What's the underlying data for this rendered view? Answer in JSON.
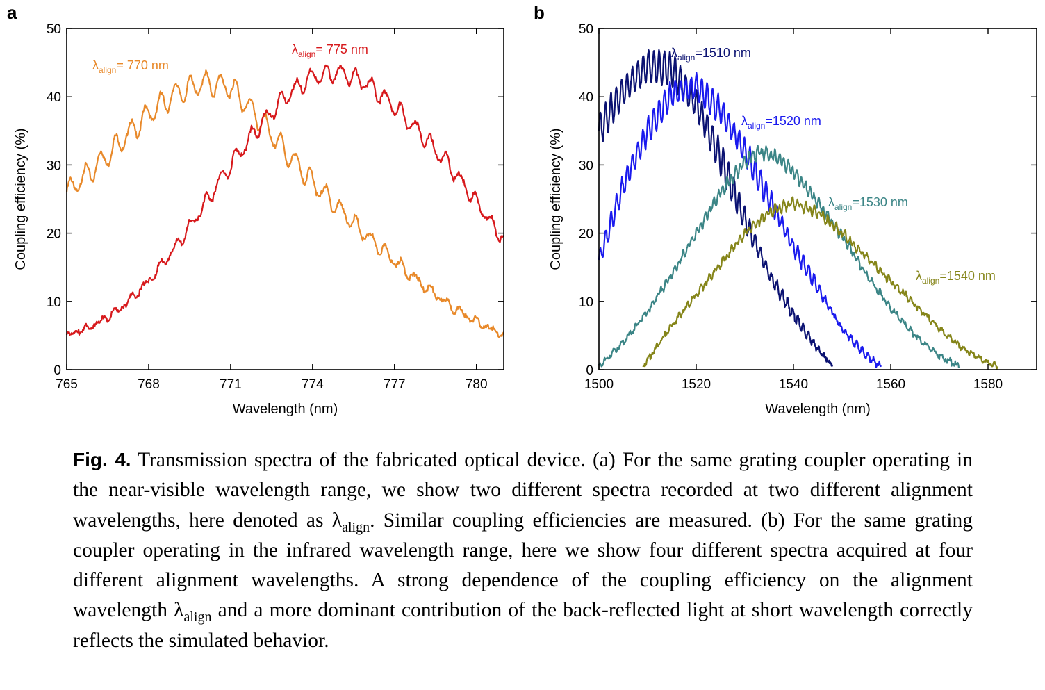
{
  "figure": {
    "caption_label": "Fig. 4.",
    "caption_segments": [
      "Transmission spectra of the fabricated optical device. (a) For the same grating coupler operating in the near-visible wavelength range, we show two different spectra recorded at two different alignment wavelengths, here denoted as ",
      ". Similar coupling efficiencies are measured. (b) For the same grating coupler operating in the infrared wavelength range, here we show four different spectra acquired at four different alignment wavelengths. A strong dependence of the coupling efficiency on the alignment wavelength ",
      " and a more dominant contribution of the back-reflected light at short wavelength correctly reflects the simulated behavior."
    ],
    "symbol_main": "λ",
    "symbol_sub": "align"
  },
  "chart_data": [
    {
      "panel": "a",
      "type": "line",
      "xlabel": "Wavelength (nm)",
      "ylabel": "Coupling efficiency (%)",
      "xlim": [
        765,
        781
      ],
      "ylim": [
        0,
        50
      ],
      "xticks": [
        765,
        768,
        771,
        774,
        777,
        780
      ],
      "yticks": [
        0,
        10,
        20,
        30,
        40,
        50
      ],
      "series": [
        {
          "label_main": "λ",
          "label_sub": "align",
          "label_value": "= 770 nm",
          "color": "#e8892a",
          "ripple_period": 0.55,
          "ripple_amp": 1.6,
          "points": [
            [
              765,
              26
            ],
            [
              766,
              29.5
            ],
            [
              767,
              33.5
            ],
            [
              768,
              37.5
            ],
            [
              769,
              40.5
            ],
            [
              770,
              42
            ],
            [
              771,
              41.5
            ],
            [
              772,
              37
            ],
            [
              773,
              32
            ],
            [
              774,
              27.5
            ],
            [
              775,
              23.5
            ],
            [
              776,
              19.5
            ],
            [
              777,
              16
            ],
            [
              778,
              12.5
            ],
            [
              779,
              9.5
            ],
            [
              780,
              7
            ],
            [
              781,
              5
            ]
          ]
        },
        {
          "label_main": "λ",
          "label_sub": "align",
          "label_value": "= 775 nm",
          "color": "#d7191c",
          "ripple_period": 0.55,
          "ripple_amp": 1.2,
          "points": [
            [
              765,
              5
            ],
            [
              766,
              6.5
            ],
            [
              767,
              9
            ],
            [
              768,
              13
            ],
            [
              769,
              18
            ],
            [
              770,
              24
            ],
            [
              771,
              30
            ],
            [
              772,
              35.5
            ],
            [
              773,
              40
            ],
            [
              774,
              43
            ],
            [
              775,
              43.5
            ],
            [
              776,
              42
            ],
            [
              777,
              38.5
            ],
            [
              778,
              34.5
            ],
            [
              779,
              30
            ],
            [
              780,
              24.5
            ],
            [
              781,
              19
            ]
          ]
        }
      ]
    },
    {
      "panel": "b",
      "type": "line",
      "xlabel": "Wavelength (nm)",
      "ylabel": "Coupling efficiency (%)",
      "xlim": [
        1500,
        1590
      ],
      "ylim": [
        0,
        50
      ],
      "xticks": [
        1500,
        1520,
        1540,
        1560,
        1580
      ],
      "yticks": [
        0,
        10,
        20,
        30,
        40,
        50
      ],
      "series": [
        {
          "label_main": "λ",
          "label_sub": "align",
          "label_value": "=1510 nm",
          "color": "#0b1272",
          "ripple_period": 1.1,
          "ripple_amp": 2.2,
          "points": [
            [
              1500,
              35
            ],
            [
              1505,
              41
            ],
            [
              1510,
              44.5
            ],
            [
              1515,
              44
            ],
            [
              1520,
              39
            ],
            [
              1525,
              31
            ],
            [
              1530,
              22
            ],
            [
              1535,
              14
            ],
            [
              1540,
              8
            ],
            [
              1545,
              3
            ],
            [
              1548,
              0.5
            ]
          ]
        },
        {
          "label_main": "λ",
          "label_sub": "align",
          "label_value": "=1520 nm",
          "color": "#1a1aee",
          "ripple_period": 1.1,
          "ripple_amp": 1.8,
          "points": [
            [
              1500,
              16
            ],
            [
              1505,
              27
            ],
            [
              1510,
              35
            ],
            [
              1515,
              40.5
            ],
            [
              1520,
              41.5
            ],
            [
              1525,
              38
            ],
            [
              1530,
              32
            ],
            [
              1535,
              25
            ],
            [
              1540,
              18
            ],
            [
              1545,
              12
            ],
            [
              1550,
              6
            ],
            [
              1555,
              2
            ],
            [
              1558,
              0.5
            ]
          ]
        },
        {
          "label_main": "λ",
          "label_sub": "align",
          "label_value": "=1530 nm",
          "color": "#3b8586",
          "ripple_period": 0.9,
          "ripple_amp": 0.8,
          "points": [
            [
              1500,
              0.5
            ],
            [
              1505,
              4
            ],
            [
              1510,
              8.5
            ],
            [
              1515,
              14
            ],
            [
              1520,
              20
            ],
            [
              1525,
              26
            ],
            [
              1530,
              30.5
            ],
            [
              1533,
              32
            ],
            [
              1537,
              31
            ],
            [
              1540,
              29
            ],
            [
              1545,
              24.5
            ],
            [
              1550,
              19.5
            ],
            [
              1555,
              14
            ],
            [
              1560,
              9
            ],
            [
              1565,
              5
            ],
            [
              1570,
              2
            ],
            [
              1574,
              0.5
            ]
          ]
        },
        {
          "label_main": "λ",
          "label_sub": "align",
          "label_value": "=1540 nm",
          "color": "#858519",
          "ripple_period": 0.9,
          "ripple_amp": 0.7,
          "points": [
            [
              1509,
              0.5
            ],
            [
              1512,
              3.5
            ],
            [
              1515,
              6.5
            ],
            [
              1520,
              11
            ],
            [
              1525,
              15.5
            ],
            [
              1530,
              20
            ],
            [
              1535,
              23
            ],
            [
              1540,
              24.5
            ],
            [
              1545,
              23
            ],
            [
              1550,
              20
            ],
            [
              1555,
              16.5
            ],
            [
              1560,
              13
            ],
            [
              1565,
              9.5
            ],
            [
              1570,
              6
            ],
            [
              1575,
              3
            ],
            [
              1580,
              1
            ],
            [
              1582,
              0.5
            ]
          ]
        }
      ]
    }
  ]
}
